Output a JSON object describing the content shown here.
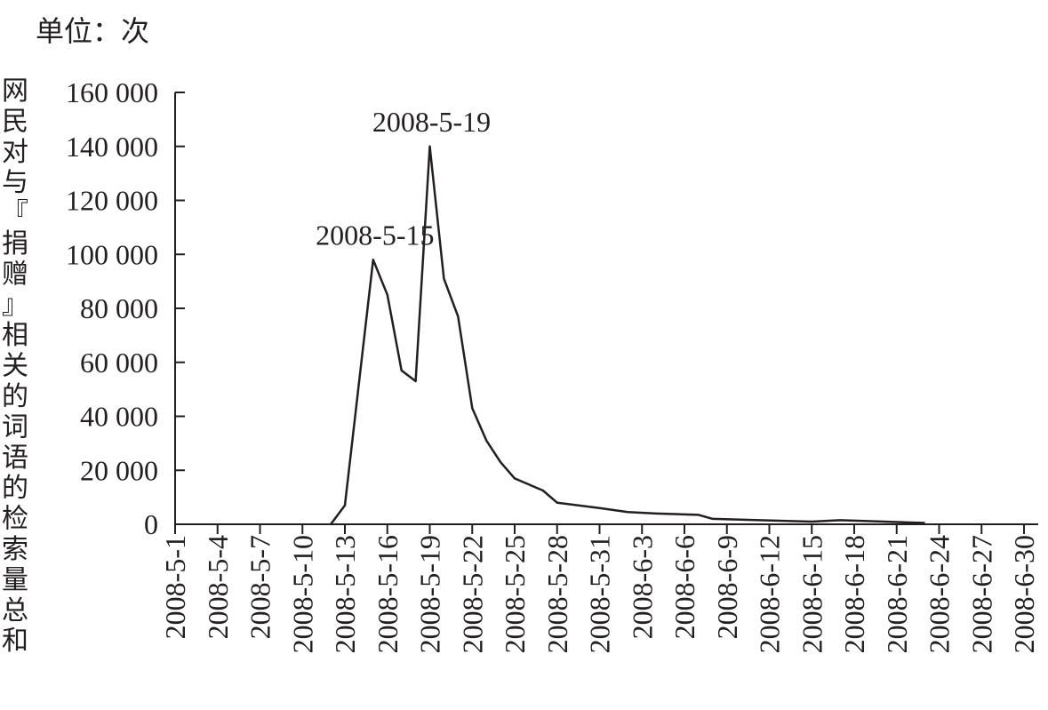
{
  "chart_data": {
    "type": "line",
    "unit_label": "单位：次",
    "ylabel": "网民对与『捐赠』相关的词语的检索量总和",
    "xlabel": "",
    "ylim": [
      0,
      160000
    ],
    "yticks": [
      0,
      20000,
      40000,
      60000,
      80000,
      100000,
      120000,
      140000,
      160000
    ],
    "ytick_labels": [
      "0",
      "20 000",
      "40 000",
      "60 000",
      "80 000",
      "100 000",
      "120 000",
      "140 000",
      "160 000"
    ],
    "x_start": "2008-5-1",
    "x_end": "2008-6-30",
    "xtick_labels": [
      "2008-5-1",
      "2008-5-4",
      "2008-5-7",
      "2008-5-10",
      "2008-5-13",
      "2008-5-16",
      "2008-5-19",
      "2008-5-22",
      "2008-5-25",
      "2008-5-28",
      "2008-5-31",
      "2008-6-3",
      "2008-6-6",
      "2008-6-9",
      "2008-6-12",
      "2008-6-15",
      "2008-6-18",
      "2008-6-21",
      "2008-6-24",
      "2008-6-27",
      "2008-6-30"
    ],
    "grid": false,
    "legend": "none",
    "series": [
      {
        "x": [
          "2008-5-12",
          "2008-5-13",
          "2008-5-15",
          "2008-5-16",
          "2008-5-17",
          "2008-5-18",
          "2008-5-19",
          "2008-5-20",
          "2008-5-21",
          "2008-5-22",
          "2008-5-23",
          "2008-5-24",
          "2008-5-25",
          "2008-5-27",
          "2008-5-28",
          "2008-5-31",
          "2008-6-2",
          "2008-6-4",
          "2008-6-7",
          "2008-6-8",
          "2008-6-15",
          "2008-6-17",
          "2008-6-23"
        ],
        "y": [
          0,
          7000,
          98000,
          85000,
          57000,
          53000,
          140000,
          91000,
          77000,
          43000,
          31000,
          23000,
          17000,
          12500,
          8000,
          6000,
          4500,
          4000,
          3500,
          2000,
          1000,
          1500,
          500
        ]
      }
    ],
    "annotations": [
      {
        "text": "2008-5-15",
        "x": "2008-5-15",
        "y": 98000
      },
      {
        "text": "2008-5-19",
        "x": "2008-5-19",
        "y": 140000
      }
    ]
  }
}
